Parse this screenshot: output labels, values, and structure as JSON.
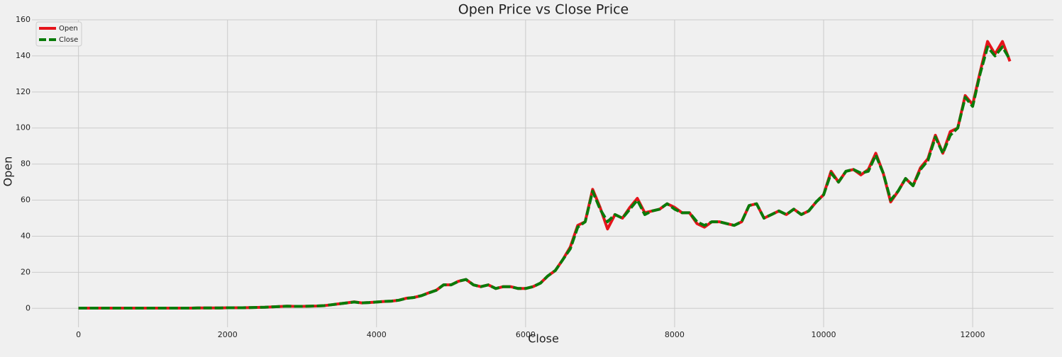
{
  "chart_data": {
    "type": "line",
    "title": "Open Price vs Close Price",
    "x_label": "Close",
    "y_label": "Open",
    "x": [
      0,
      100,
      200,
      300,
      400,
      500,
      600,
      700,
      800,
      900,
      1000,
      1100,
      1200,
      1300,
      1400,
      1500,
      1600,
      1700,
      1800,
      1900,
      2000,
      2100,
      2200,
      2300,
      2400,
      2500,
      2600,
      2700,
      2800,
      2900,
      3000,
      3100,
      3200,
      3300,
      3400,
      3500,
      3600,
      3700,
      3800,
      3900,
      4000,
      4100,
      4200,
      4300,
      4400,
      4500,
      4600,
      4700,
      4800,
      4900,
      5000,
      5100,
      5200,
      5300,
      5400,
      5500,
      5600,
      5700,
      5800,
      5900,
      6000,
      6100,
      6200,
      6300,
      6400,
      6500,
      6600,
      6700,
      6800,
      6900,
      7000,
      7100,
      7200,
      7300,
      7400,
      7500,
      7600,
      7700,
      7800,
      7900,
      8000,
      8100,
      8200,
      8300,
      8400,
      8500,
      8600,
      8700,
      8800,
      8900,
      9000,
      9100,
      9200,
      9300,
      9400,
      9500,
      9600,
      9700,
      9800,
      9900,
      10000,
      10100,
      10200,
      10300,
      10400,
      10500,
      10600,
      10700,
      10800,
      10900,
      11000,
      11100,
      11200,
      11300,
      11400,
      11500,
      11600,
      11700,
      11800,
      11900,
      12000,
      12100,
      12200,
      12300,
      12400,
      12500
    ],
    "series": [
      {
        "name": "Open",
        "color": "#e5141b",
        "dashed": false,
        "values": [
          0.1,
          0.1,
          0.1,
          0.1,
          0.1,
          0.1,
          0.1,
          0.1,
          0.1,
          0.1,
          0.1,
          0.1,
          0.1,
          0.1,
          0.1,
          0.1,
          0.2,
          0.2,
          0.2,
          0.2,
          0.3,
          0.3,
          0.3,
          0.4,
          0.5,
          0.6,
          0.8,
          1,
          1.2,
          1.1,
          1.1,
          1.2,
          1.3,
          1.5,
          2,
          2.5,
          3,
          3.6,
          3,
          3.2,
          3.5,
          3.8,
          4,
          4.5,
          5.6,
          6,
          7,
          8.6,
          10,
          13,
          13,
          15,
          16,
          13,
          12,
          13,
          11,
          12,
          12,
          11,
          11,
          12,
          14,
          18,
          21,
          27,
          34,
          46,
          48,
          66,
          56,
          44,
          52,
          50,
          56,
          61,
          53,
          54,
          55,
          58,
          56,
          53,
          53,
          47,
          45,
          48,
          48,
          47,
          46,
          48,
          57,
          58,
          50,
          52,
          54,
          52,
          55,
          52,
          54,
          59,
          63,
          76,
          70,
          76,
          77,
          74,
          77,
          86,
          75,
          59,
          65,
          72,
          68,
          78,
          83,
          96,
          86,
          98,
          100,
          118,
          113,
          131,
          148,
          141,
          148,
          137
        ]
      },
      {
        "name": "Close",
        "color": "#0a7b0a",
        "dashed": true,
        "values": [
          0.1,
          0.1,
          0.1,
          0.1,
          0.1,
          0.1,
          0.1,
          0.1,
          0.1,
          0.1,
          0.1,
          0.1,
          0.1,
          0.1,
          0.1,
          0.1,
          0.2,
          0.2,
          0.2,
          0.2,
          0.3,
          0.3,
          0.3,
          0.4,
          0.5,
          0.6,
          0.8,
          1,
          1.2,
          1.1,
          1.1,
          1.2,
          1.3,
          1.5,
          2,
          2.5,
          3,
          3.5,
          3,
          3.2,
          3.5,
          3.8,
          4,
          4.5,
          5.5,
          6,
          7,
          8.5,
          10,
          13,
          13,
          15,
          16,
          13,
          12,
          13,
          11,
          12,
          12,
          11,
          11,
          12,
          14,
          18,
          21,
          27,
          33,
          45,
          48,
          65,
          55,
          48,
          52,
          50,
          55,
          60,
          52,
          54,
          55,
          58,
          55,
          53,
          53,
          48,
          46,
          48,
          48,
          47,
          46,
          48,
          57,
          58,
          50,
          52,
          54,
          52,
          55,
          52,
          54,
          59,
          63,
          75,
          70,
          76,
          77,
          75,
          76,
          85,
          75,
          60,
          65,
          72,
          68,
          77,
          82,
          95,
          86,
          96,
          100,
          117,
          112,
          130,
          145,
          140,
          145,
          138
        ]
      }
    ],
    "xlim": [
      -625,
      13085
    ],
    "ylim": [
      -10.5,
      160
    ],
    "xticks": [
      0,
      2000,
      4000,
      6000,
      8000,
      10000,
      12000
    ],
    "yticks": [
      0,
      20,
      40,
      60,
      80,
      100,
      120,
      140,
      160
    ],
    "grid": true,
    "legend": "upper-left"
  }
}
